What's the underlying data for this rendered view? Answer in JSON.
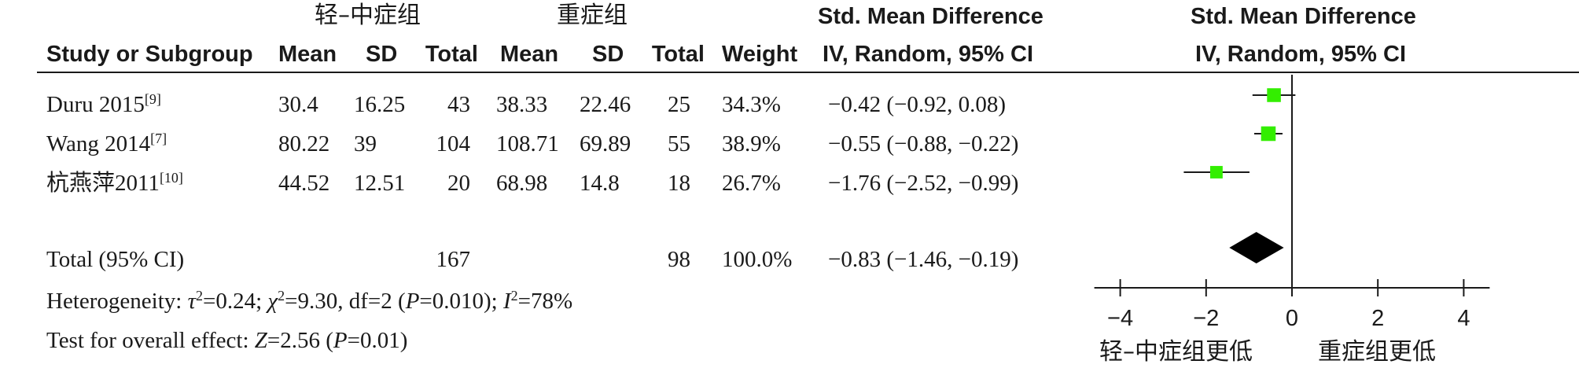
{
  "headers": {
    "group1": "轻–中症组",
    "group2": "重症组",
    "smd_top_left": "Std. Mean Difference",
    "smd_sub_left": "IV, Random, 95% CI",
    "smd_top_right": "Std. Mean Difference",
    "smd_sub_right": "IV, Random, 95% CI",
    "study": "Study or Subgroup",
    "mean1": "Mean",
    "sd1": "SD",
    "total1": "Total",
    "mean2": "Mean",
    "sd2": "SD",
    "total2": "Total",
    "weight": "Weight"
  },
  "studies": [
    {
      "name": "Duru 2015",
      "ref": "[9]",
      "mean1": "30.4",
      "sd1": "16.25",
      "total1": "43",
      "mean2": "38.33",
      "sd2": "22.46",
      "total2": "25",
      "weight": "34.3%",
      "ci_text": "−0.42 (−0.92, 0.08)"
    },
    {
      "name": "Wang 2014",
      "ref": "[7]",
      "mean1": "80.22",
      "sd1": "39",
      "total1": "104",
      "mean2": "108.71",
      "sd2": "69.89",
      "total2": "55",
      "weight": "38.9%",
      "ci_text": "−0.55 (−0.88, −0.22)"
    },
    {
      "name": "杭燕萍2011",
      "ref": "[10]",
      "mean1": "44.52",
      "sd1": "12.51",
      "total1": "20",
      "mean2": "68.98",
      "sd2": "14.8",
      "total2": "18",
      "weight": "26.7%",
      "ci_text": "−1.76 (−2.52, −0.99)"
    }
  ],
  "total": {
    "label": "Total (95% CI)",
    "total1": "167",
    "total2": "98",
    "weight": "100.0%",
    "ci_text": "−0.83 (−1.46, −0.19)"
  },
  "heterogeneity": {
    "label": "Heterogeneity: ",
    "tau_symbol": "τ",
    "tau_value": "=0.24; ",
    "chi_symbol": "χ",
    "chi_value": "=9.30, df=2 (",
    "p_symbol": "P",
    "p_value": "=0.010); ",
    "i_symbol": "I",
    "i_value": "=78%",
    "sq": "2"
  },
  "overall": {
    "label": "Test for overall effect: ",
    "z_symbol": "Z",
    "z_value": "=2.56 (",
    "p_symbol": "P",
    "p_value": "=0.01)"
  },
  "favours": {
    "left": "轻–中症组更低",
    "right": "重症组更低"
  },
  "chart_data": {
    "type": "scatter",
    "title": "",
    "xlabel": "",
    "ylabel": "",
    "xlim": [
      -4,
      4
    ],
    "xticks": [
      -4,
      -2,
      0,
      2,
      4
    ],
    "x_tick_labels": [
      "−4",
      "−2",
      "0",
      "2",
      "4"
    ],
    "reference_line": 0,
    "marker_color": "#33ee00",
    "diamond_color": "#000000",
    "studies": [
      {
        "name": "Duru 2015",
        "smd": -0.42,
        "ci_low": -0.92,
        "ci_high": 0.08,
        "weight": 34.3
      },
      {
        "name": "Wang 2014",
        "smd": -0.55,
        "ci_low": -0.88,
        "ci_high": -0.22,
        "weight": 38.9
      },
      {
        "name": "杭燕萍2011",
        "smd": -1.76,
        "ci_low": -2.52,
        "ci_high": -0.99,
        "weight": 26.7
      }
    ],
    "pooled": {
      "smd": -0.83,
      "ci_low": -1.46,
      "ci_high": -0.19
    }
  }
}
